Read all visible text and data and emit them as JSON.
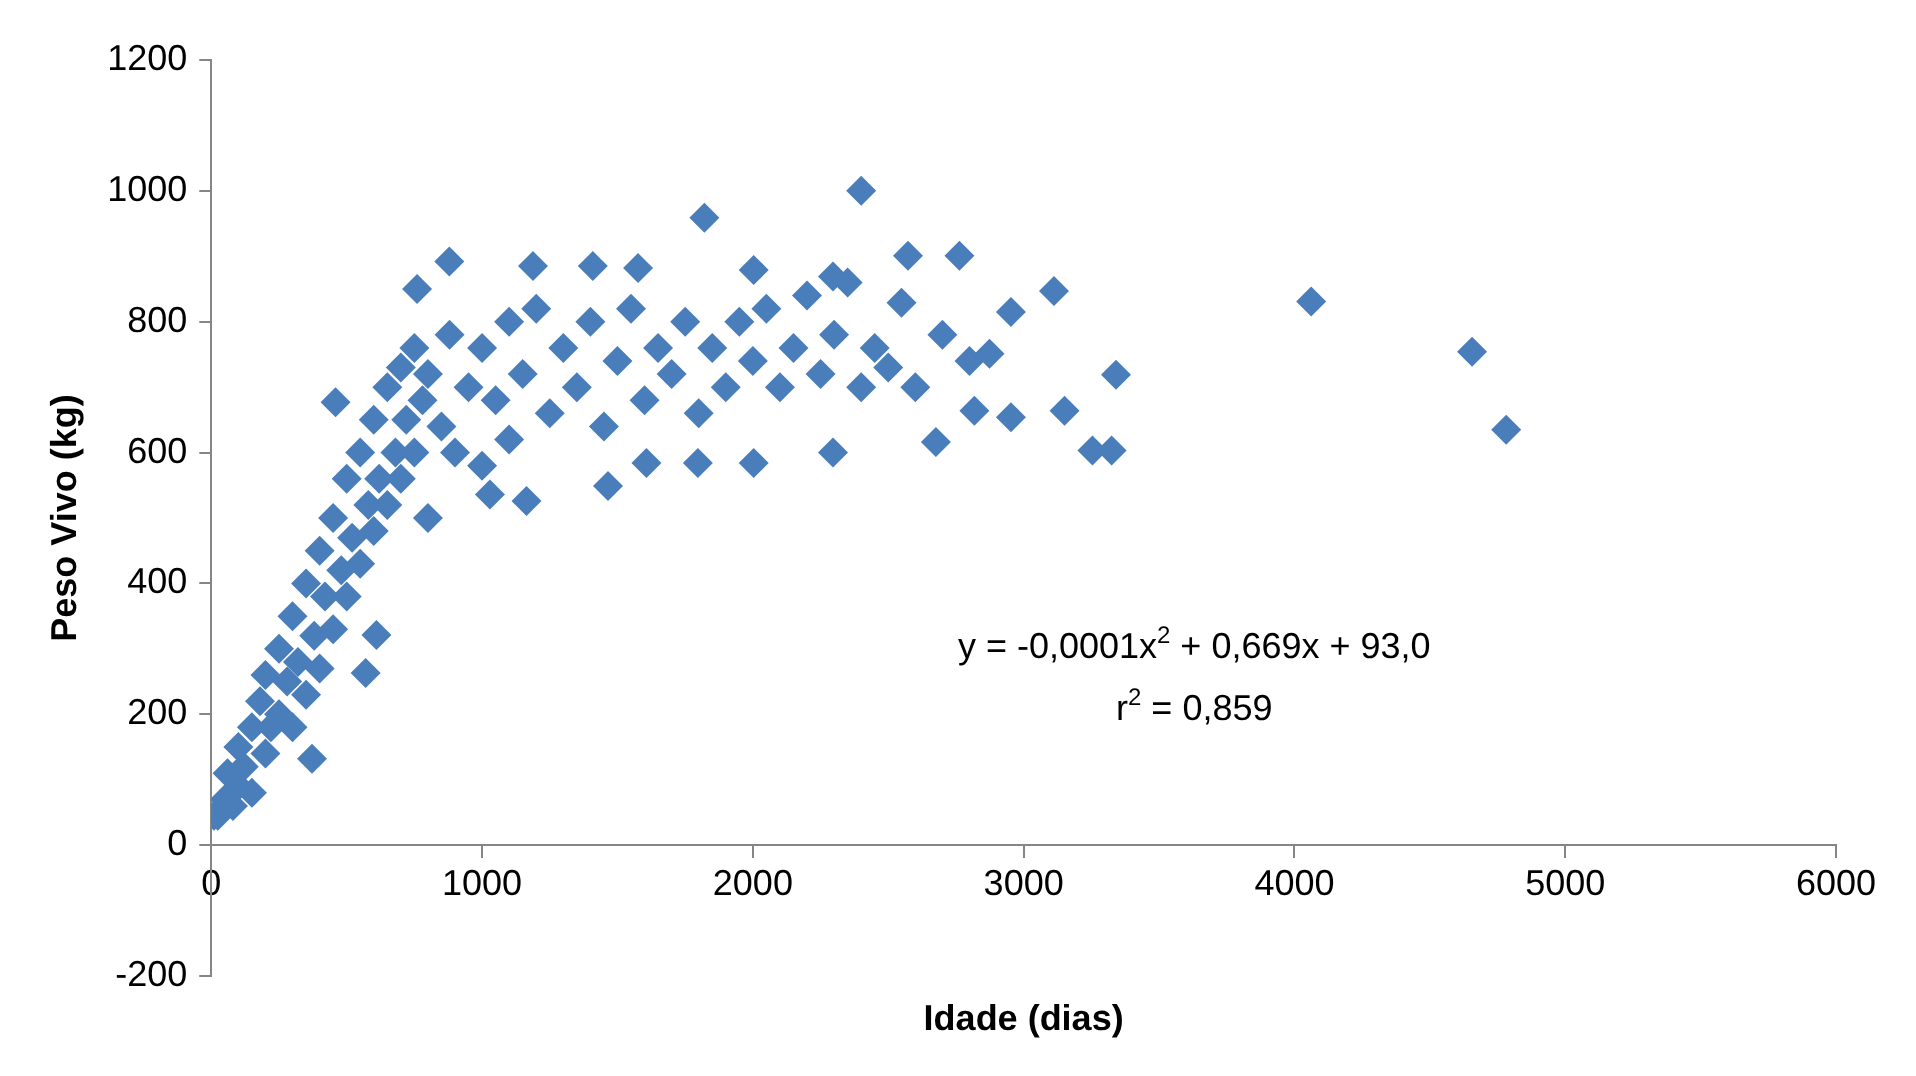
{
  "chart_data": {
    "type": "scatter",
    "xlabel": "Idade (dias)",
    "ylabel": "Peso Vivo (kg)",
    "xlim": [
      0,
      6000
    ],
    "xticks": [
      0,
      1000,
      2000,
      3000,
      4000,
      5000,
      6000
    ],
    "ylim": [
      -200,
      1200
    ],
    "yticks": [
      -200,
      0,
      200,
      400,
      600,
      800,
      1000,
      1200
    ],
    "grid": false,
    "legend": false,
    "marker": "diamond",
    "annotations": [
      "y = -0,0001x$^{2}$ + 0,669x + 93,0",
      "r$^{2}$ = 0,859"
    ],
    "series": [
      {
        "color": "#4a7ebb",
        "x": [
          10,
          50,
          60,
          80,
          100,
          100,
          120,
          150,
          150,
          180,
          200,
          200,
          220,
          250,
          250,
          280,
          300,
          300,
          320,
          350,
          350,
          380,
          400,
          400,
          420,
          450,
          450,
          480,
          500,
          500,
          520,
          550,
          550,
          580,
          600,
          600,
          620,
          650,
          650,
          680,
          700,
          700,
          720,
          750,
          750,
          780,
          800,
          800,
          850,
          880,
          900,
          950,
          1000,
          1000,
          1050,
          1100,
          1100,
          1150,
          1200,
          1250,
          1300,
          1350,
          1400,
          1450,
          1500,
          1550,
          1600,
          1650,
          1700,
          1750,
          1800,
          1850,
          1900,
          1950,
          2000,
          2050,
          2100,
          2150,
          2200,
          2250,
          2300,
          2350,
          2400,
          2450,
          2500,
          2600,
          2700,
          2800,
          24,
          372,
          570,
          610,
          459,
          760,
          879,
          1188,
          1409,
          1576,
          1821,
          2400,
          2003,
          2296,
          1029,
          1164,
          1465,
          1797,
          1607,
          2003,
          2296,
          2549,
          2573,
          2763,
          2676,
          2818,
          2874,
          2953,
          2953,
          3112,
          3151,
          3254,
          3325,
          3341,
          4062,
          4656,
          4782
        ],
        "values": [
          45,
          70,
          110,
          60,
          150,
          90,
          120,
          180,
          80,
          220,
          140,
          260,
          180,
          300,
          200,
          250,
          350,
          180,
          280,
          400,
          230,
          320,
          450,
          270,
          380,
          500,
          330,
          420,
          560,
          380,
          470,
          600,
          430,
          520,
          650,
          480,
          560,
          700,
          520,
          600,
          730,
          560,
          650,
          760,
          600,
          680,
          720,
          500,
          640,
          780,
          600,
          700,
          760,
          580,
          680,
          800,
          620,
          720,
          820,
          660,
          760,
          700,
          800,
          640,
          740,
          820,
          680,
          760,
          720,
          800,
          660,
          760,
          700,
          800,
          740,
          820,
          700,
          760,
          840,
          720,
          780,
          860,
          700,
          760,
          730,
          700,
          780,
          740,
          45,
          132,
          263,
          321,
          677,
          850,
          892,
          885,
          885,
          882,
          959,
          1000,
          584,
          600,
          536,
          526,
          549,
          584,
          584,
          879,
          869,
          829,
          901,
          901,
          616,
          664,
          751,
          815,
          654,
          847,
          664,
          603,
          603,
          719,
          831,
          754,
          635
        ]
      }
    ]
  }
}
